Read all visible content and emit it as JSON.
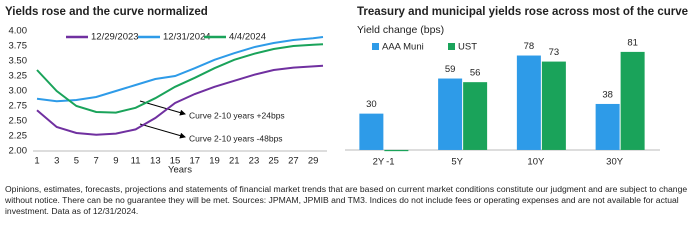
{
  "chart_data": [
    {
      "type": "line",
      "title": "Yields rose and the curve normalized",
      "x_label": "Years",
      "x": [
        1,
        3,
        5,
        7,
        9,
        11,
        13,
        15,
        17,
        19,
        21,
        23,
        25,
        27,
        29,
        30
      ],
      "series": [
        {
          "name": "12/29/2023",
          "color": "#7030a0",
          "values": [
            2.68,
            2.4,
            2.3,
            2.27,
            2.29,
            2.36,
            2.55,
            2.8,
            2.95,
            3.07,
            3.17,
            3.27,
            3.35,
            3.39,
            3.41,
            3.42
          ]
        },
        {
          "name": "12/31/2024",
          "color": "#2e9be8",
          "values": [
            2.87,
            2.83,
            2.85,
            2.9,
            3.0,
            3.1,
            3.2,
            3.25,
            3.38,
            3.52,
            3.63,
            3.73,
            3.8,
            3.85,
            3.88,
            3.9
          ]
        },
        {
          "name": "4/4/2024",
          "color": "#1aa35a",
          "values": [
            3.35,
            3.0,
            2.75,
            2.65,
            2.64,
            2.72,
            2.88,
            3.07,
            3.22,
            3.38,
            3.52,
            3.62,
            3.7,
            3.75,
            3.77,
            3.78
          ]
        }
      ],
      "xlim": [
        1,
        30
      ],
      "xticks": [
        1,
        3,
        5,
        7,
        9,
        11,
        13,
        15,
        17,
        19,
        21,
        23,
        25,
        27,
        29
      ],
      "ylim": [
        2,
        4
      ],
      "yticks": [
        {
          "value": 2,
          "label": "2.00"
        },
        {
          "value": 2.25,
          "label": "2.25"
        },
        {
          "value": 2.5,
          "label": "2.50"
        },
        {
          "value": 2.75,
          "label": "2.75"
        },
        {
          "value": 3,
          "label": "3.00"
        },
        {
          "value": 3.25,
          "label": "3.25"
        },
        {
          "value": 3.5,
          "label": "3.50"
        },
        {
          "value": 3.75,
          "label": "3.75"
        },
        {
          "value": 4,
          "label": "4.00"
        }
      ],
      "annotations": [
        "Curve 2-10 years +24bps",
        "Curve 2-10 years -48bps"
      ]
    },
    {
      "type": "bar",
      "title": "Treasury and municipal yields rose across most of the curve",
      "y_label": "Yield change (bps)",
      "categories": [
        "2Y",
        "5Y",
        "10Y",
        "30Y"
      ],
      "series": [
        {
          "name": "AAA Muni",
          "color": "#2e9be8",
          "values": [
            30,
            59,
            78,
            38
          ]
        },
        {
          "name": "UST",
          "color": "#1aa35a",
          "values": [
            -1,
            56,
            73,
            81
          ]
        }
      ],
      "ylim": [
        -5,
        90
      ]
    }
  ],
  "footnote": "Opinions, estimates, forecasts, projections and statements of financial market trends that are based on current market conditions constitute our judgment and are subject to change without notice. There can be no guarantee they will be met. Sources: JPMAM, JPMIB and TM3. Indices do not include fees or operating expenses and are not available for actual investment. Data as of 12/31/2024."
}
